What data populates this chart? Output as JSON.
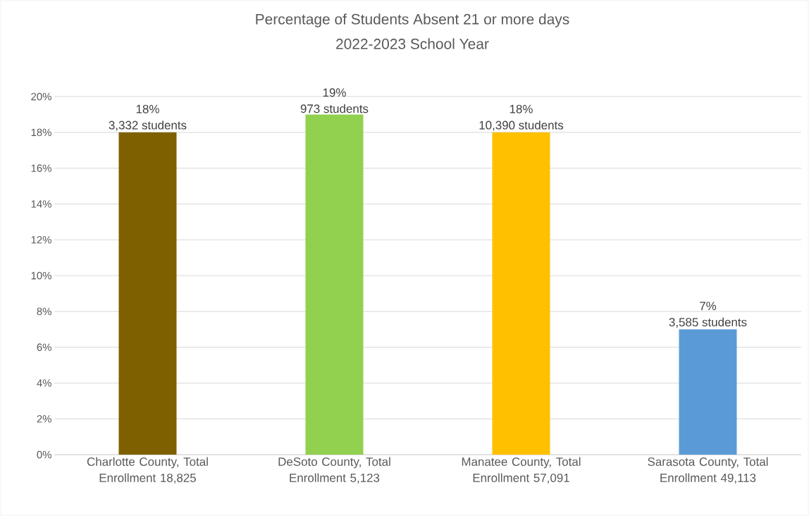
{
  "chart_data": {
    "type": "bar",
    "title": "Percentage of Students Absent 21 or more days",
    "subtitle": "2022-2023 School Year",
    "categories": [
      "Charlotte County, Total Enrollment 18,825",
      "DeSoto County, Total Enrollment 5,123",
      "Manatee County, Total Enrollment 57,091",
      "Sarasota County, Total Enrollment 49,113"
    ],
    "values": [
      18,
      19,
      18,
      7
    ],
    "colors": [
      "#7f6000",
      "#92d050",
      "#ffc000",
      "#5b9bd5"
    ],
    "value_labels": [
      "18%",
      "19%",
      "18%",
      "7%"
    ],
    "annotations": [
      {
        "text": "3,332 students",
        "x": "Charlotte County, Total Enrollment 18,825",
        "y": 18
      },
      {
        "text": "973 students",
        "x": "DeSoto County, Total Enrollment 5,123",
        "y": 19
      },
      {
        "text": "10,390 students",
        "x": "Manatee County, Total Enrollment 57,091",
        "y": 18
      },
      {
        "text": "3,585 students",
        "x": "Sarasota County, Total Enrollment 49,113",
        "y": 7
      }
    ],
    "ylim": [
      0,
      20
    ],
    "yticks": [
      {
        "value": 0,
        "label": "0%"
      },
      {
        "value": 2,
        "label": "2%"
      },
      {
        "value": 4,
        "label": "4%"
      },
      {
        "value": 6,
        "label": "6%"
      },
      {
        "value": 8,
        "label": "8%"
      },
      {
        "value": 10,
        "label": "10%"
      },
      {
        "value": 12,
        "label": "12%"
      },
      {
        "value": 14,
        "label": "14%"
      },
      {
        "value": 16,
        "label": "16%"
      },
      {
        "value": 18,
        "label": "18%"
      },
      {
        "value": 20,
        "label": "20%"
      }
    ],
    "grid": "y"
  }
}
